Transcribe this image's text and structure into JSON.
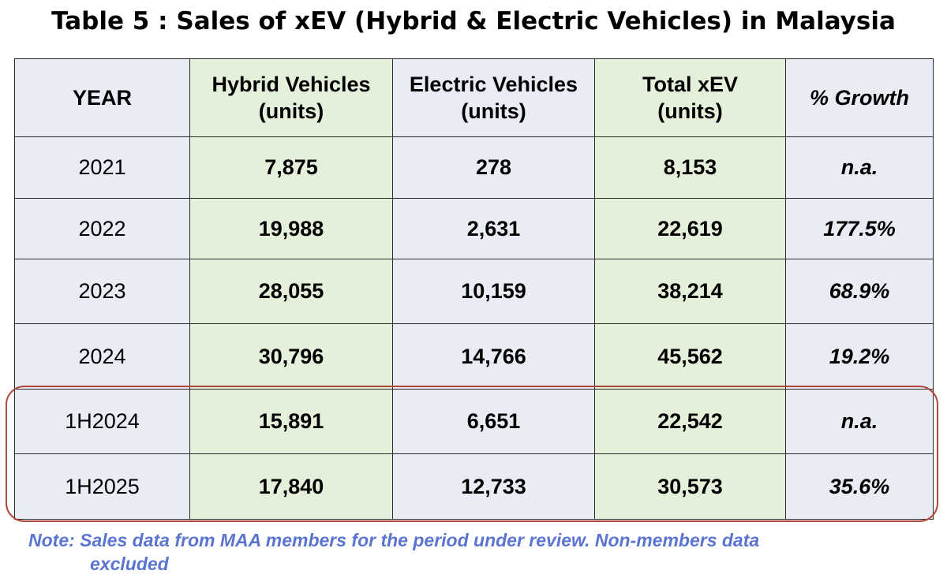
{
  "title": "Table 5 : Sales of xEV (Hybrid & Electric Vehicles) in Malaysia",
  "chart_data": {
    "type": "table",
    "title": "Table 5 : Sales of xEV (Hybrid & Electric Vehicles) in Malaysia",
    "columns": [
      {
        "line1": "YEAR",
        "line2": ""
      },
      {
        "line1": "Hybrid Vehicles",
        "line2": "(units)"
      },
      {
        "line1": "Electric Vehicles",
        "line2": "(units)"
      },
      {
        "line1": "Total xEV",
        "line2": "(units)"
      },
      {
        "line1": "% Growth",
        "line2": ""
      }
    ],
    "rows": [
      {
        "year": "2021",
        "hybrid": "7,875",
        "electric": "278",
        "total": "8,153",
        "growth": "n.a."
      },
      {
        "year": "2022",
        "hybrid": "19,988",
        "electric": "2,631",
        "total": "22,619",
        "growth": "177.5%"
      },
      {
        "year": "2023",
        "hybrid": "28,055",
        "electric": "10,159",
        "total": "38,214",
        "growth": "68.9%"
      },
      {
        "year": "2024",
        "hybrid": "30,796",
        "electric": "14,766",
        "total": "45,562",
        "growth": "19.2%"
      },
      {
        "year": "1H2024",
        "hybrid": "15,891",
        "electric": "6,651",
        "total": "22,542",
        "growth": "n.a."
      },
      {
        "year": "1H2025",
        "hybrid": "17,840",
        "electric": "12,733",
        "total": "30,573",
        "growth": "35.6%"
      }
    ],
    "highlighted_rows": [
      "1H2024",
      "1H2025"
    ]
  },
  "note": {
    "line1": "Note: Sales data from MAA members for the period under review. Non-members data",
    "line2": "excluded"
  },
  "colors": {
    "hybrid_total_fill": "#e4f0d9",
    "other_fill": "#e9ebf5",
    "highlight_border": "#b0483a",
    "note_text": "#5a74d0"
  }
}
